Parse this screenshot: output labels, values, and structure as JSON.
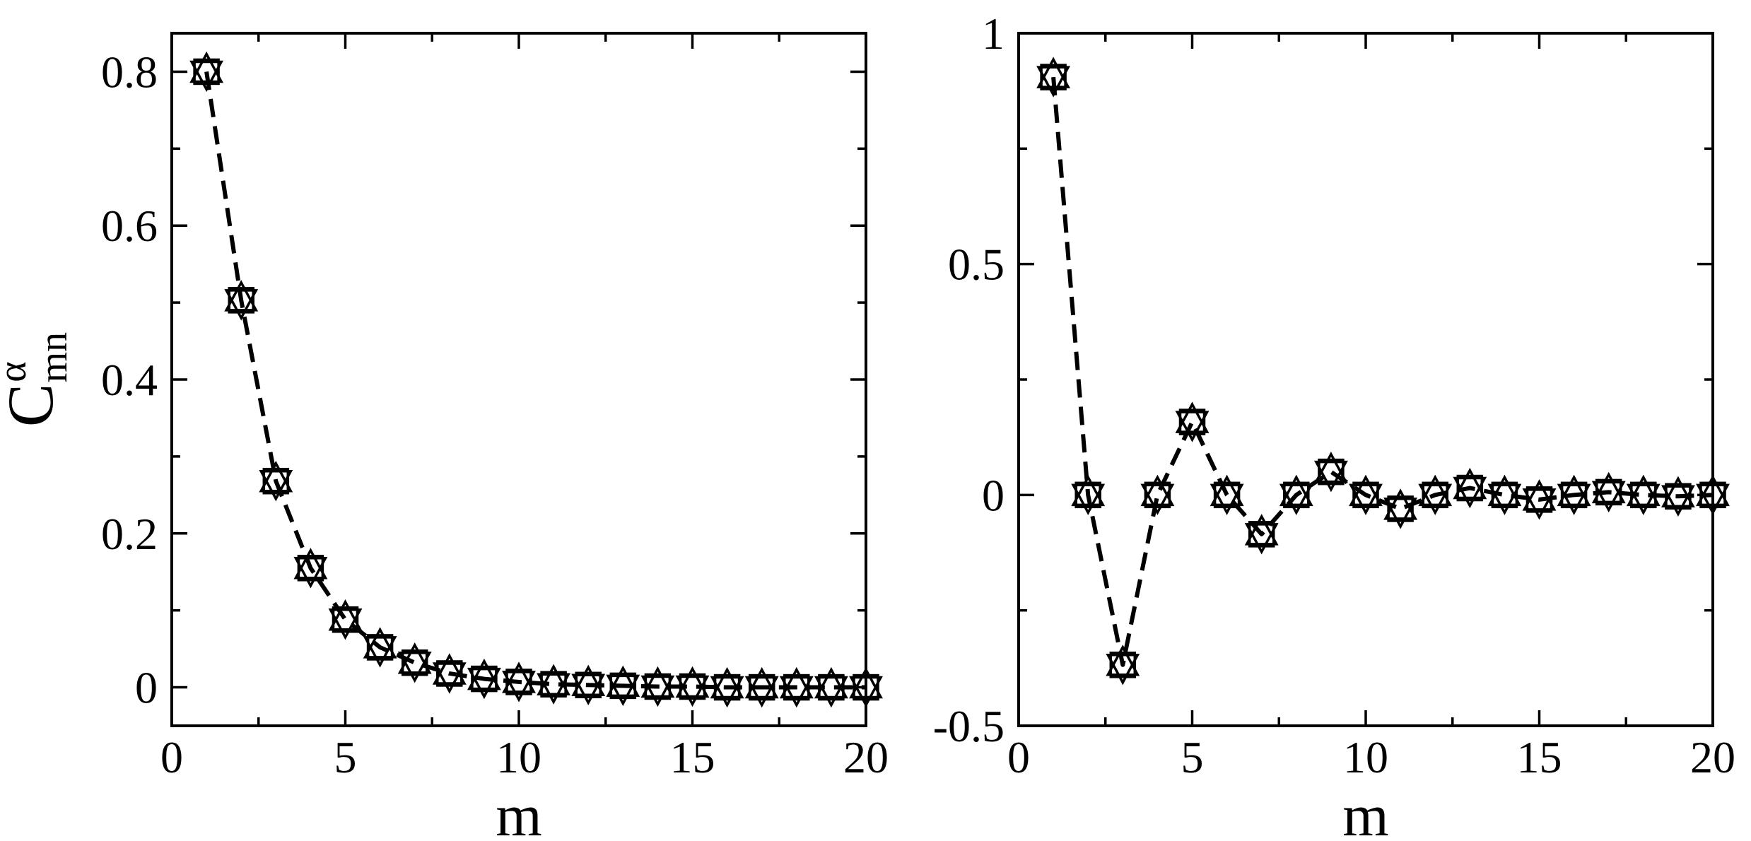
{
  "chart_data": [
    {
      "type": "line",
      "panel": "left",
      "xlabel": "m",
      "ylabel": "C",
      "ylabel_super": "α",
      "ylabel_sub": "mn",
      "xlim": [
        0,
        20
      ],
      "ylim": [
        -0.05,
        0.85
      ],
      "xticks": [
        0,
        5,
        10,
        15,
        20
      ],
      "xtick_labels": [
        "0",
        "5",
        "10",
        "15",
        "20"
      ],
      "yticks": [
        0,
        0.2,
        0.4,
        0.6,
        0.8
      ],
      "ytick_labels": [
        "0",
        "0.2",
        "0.4",
        "0.6",
        "0.8"
      ],
      "grid": false,
      "x": [
        1,
        2,
        3,
        4,
        5,
        6,
        7,
        8,
        9,
        10,
        11,
        12,
        13,
        14,
        15,
        16,
        17,
        18,
        19,
        20
      ],
      "series": [
        {
          "marker": "square",
          "line": "dashed",
          "values": [
            0.8,
            0.503,
            0.268,
            0.155,
            0.088,
            0.052,
            0.032,
            0.018,
            0.011,
            0.007,
            0.004,
            0.003,
            0.002,
            0.001,
            0.001,
            0.0,
            0.0,
            0.0,
            0.0,
            0.0
          ]
        },
        {
          "marker": "triangle-up",
          "line": "none",
          "values": [
            0.8,
            0.503,
            0.268,
            0.155,
            0.088,
            0.052,
            0.032,
            0.018,
            0.011,
            0.007,
            0.004,
            0.003,
            0.002,
            0.001,
            0.001,
            0.0,
            0.0,
            0.0,
            0.0,
            0.0
          ]
        },
        {
          "marker": "triangle-down",
          "line": "none",
          "values": [
            0.8,
            0.503,
            0.268,
            0.155,
            0.088,
            0.052,
            0.032,
            0.018,
            0.011,
            0.007,
            0.004,
            0.003,
            0.002,
            0.001,
            0.001,
            0.0,
            0.0,
            0.0,
            0.0,
            0.0
          ]
        }
      ]
    },
    {
      "type": "line",
      "panel": "right",
      "xlabel": "m",
      "ylabel": "",
      "xlim": [
        0,
        20
      ],
      "ylim": [
        -0.5,
        1
      ],
      "xticks": [
        0,
        5,
        10,
        15,
        20
      ],
      "xtick_labels": [
        "0",
        "5",
        "10",
        "15",
        "20"
      ],
      "yticks": [
        -0.5,
        0,
        0.5,
        1
      ],
      "ytick_labels": [
        "-0.5",
        "0",
        "0.5",
        "1"
      ],
      "grid": false,
      "x": [
        1,
        2,
        3,
        4,
        5,
        6,
        7,
        8,
        9,
        10,
        11,
        12,
        13,
        14,
        15,
        16,
        17,
        18,
        19,
        20
      ],
      "series": [
        {
          "marker": "square",
          "line": "dashed",
          "values": [
            0.905,
            0.0,
            -0.368,
            0.0,
            0.158,
            0.0,
            -0.085,
            0.0,
            0.05,
            0.0,
            -0.03,
            0.0,
            0.015,
            0.0,
            -0.01,
            0.0,
            0.006,
            0.0,
            -0.003,
            0.0
          ]
        },
        {
          "marker": "triangle-up",
          "line": "none",
          "values": [
            0.905,
            0.0,
            -0.368,
            0.0,
            0.158,
            0.0,
            -0.085,
            0.0,
            0.05,
            0.0,
            -0.03,
            0.0,
            0.015,
            0.0,
            -0.01,
            0.0,
            0.006,
            0.0,
            -0.003,
            0.0
          ]
        },
        {
          "marker": "triangle-down",
          "line": "none",
          "values": [
            0.905,
            0.0,
            -0.368,
            0.0,
            0.158,
            0.0,
            -0.085,
            0.0,
            0.05,
            0.0,
            -0.03,
            0.0,
            0.015,
            0.0,
            -0.01,
            0.0,
            0.006,
            0.0,
            -0.003,
            0.0
          ]
        }
      ]
    }
  ]
}
